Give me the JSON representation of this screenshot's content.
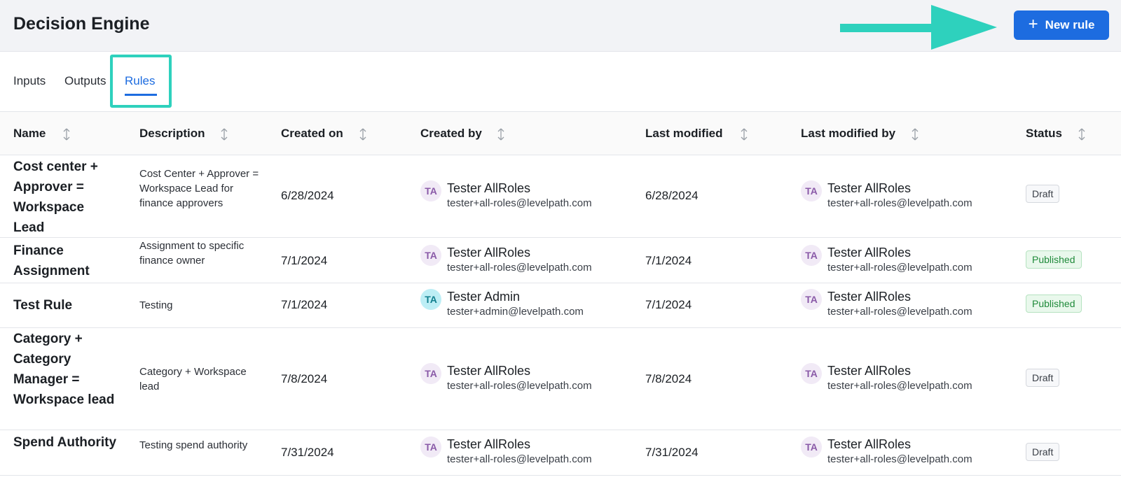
{
  "header": {
    "title": "Decision Engine",
    "new_rule_label": "New rule",
    "accent": "#1d6ce0"
  },
  "tabs": [
    {
      "label": "Inputs",
      "active": false
    },
    {
      "label": "Outputs",
      "active": false
    },
    {
      "label": "Rules",
      "active": true
    }
  ],
  "columns": [
    "Name",
    "Description",
    "Created on",
    "Created by",
    "Last modified",
    "Last modified by",
    "Status"
  ],
  "rows": [
    {
      "name": "Cost center + Approver = Workspace Lead",
      "description": "Cost Center + Approver = Workspace Lead for finance approvers",
      "created_on": "6/28/2024",
      "created_by": {
        "initials": "TA",
        "name": "Tester AllRoles",
        "email": "tester+all-roles@levelpath.com"
      },
      "last_modified": "6/28/2024",
      "last_modified_by": {
        "initials": "TA",
        "name": "Tester AllRoles",
        "email": "tester+all-roles@levelpath.com"
      },
      "status": "Draft"
    },
    {
      "name": "Finance Assignment",
      "description": "Assignment to specific finance owner",
      "created_on": "7/1/2024",
      "created_by": {
        "initials": "TA",
        "name": "Tester AllRoles",
        "email": "tester+all-roles@levelpath.com"
      },
      "last_modified": "7/1/2024",
      "last_modified_by": {
        "initials": "TA",
        "name": "Tester AllRoles",
        "email": "tester+all-roles@levelpath.com"
      },
      "status": "Published"
    },
    {
      "name": "Test Rule",
      "description": "Testing",
      "created_on": "7/1/2024",
      "created_by": {
        "initials": "TA",
        "name": "Tester Admin",
        "email": "tester+admin@levelpath.com"
      },
      "last_modified": "7/1/2024",
      "last_modified_by": {
        "initials": "TA",
        "name": "Tester AllRoles",
        "email": "tester+all-roles@levelpath.com"
      },
      "status": "Published"
    },
    {
      "name": "Category + Category Manager = Workspace lead",
      "description": "Category + Workspace lead",
      "created_on": "7/8/2024",
      "created_by": {
        "initials": "TA",
        "name": "Tester AllRoles",
        "email": "tester+all-roles@levelpath.com"
      },
      "last_modified": "7/8/2024",
      "last_modified_by": {
        "initials": "TA",
        "name": "Tester AllRoles",
        "email": "tester+all-roles@levelpath.com"
      },
      "status": "Draft"
    },
    {
      "name": "Spend Authority",
      "description": "Testing spend authority",
      "created_on": "7/31/2024",
      "created_by": {
        "initials": "TA",
        "name": "Tester AllRoles",
        "email": "tester+all-roles@levelpath.com"
      },
      "last_modified": "7/31/2024",
      "last_modified_by": {
        "initials": "TA",
        "name": "Tester AllRoles",
        "email": "tester+all-roles@levelpath.com"
      },
      "status": "Draft"
    }
  ]
}
